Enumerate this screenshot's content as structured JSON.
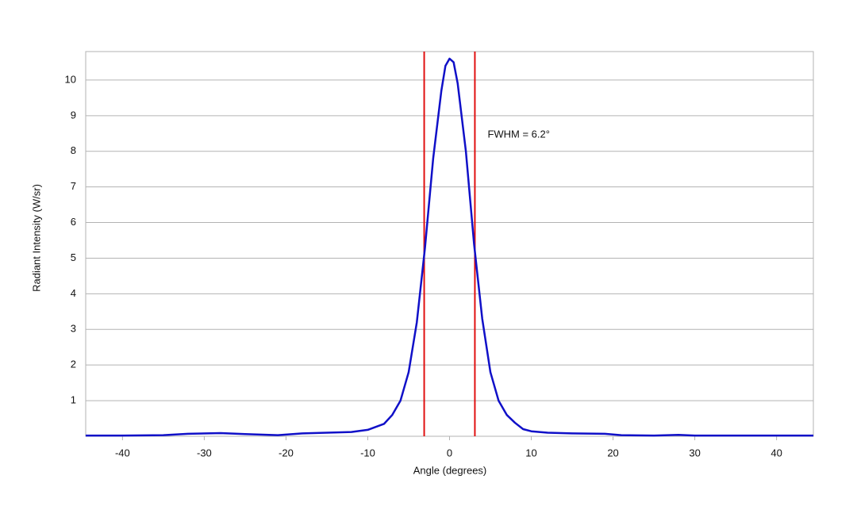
{
  "chart_data": {
    "type": "line",
    "x_label": "Angle (degrees)",
    "y_label": "Radiant Intensity (W/sr)",
    "x": [
      -44.5,
      -40,
      -35,
      -32,
      -28,
      -25,
      -21,
      -18,
      -15,
      -12,
      -10,
      -8,
      -7,
      -6,
      -5,
      -4,
      -3,
      -2,
      -1,
      -0.5,
      0,
      0.5,
      1,
      2,
      3,
      4,
      5,
      6,
      7,
      8,
      9,
      10,
      12,
      15,
      19,
      21,
      25,
      28,
      30,
      35,
      40,
      44.5
    ],
    "series": [
      {
        "color": "#1010c8",
        "values": [
          0.02,
          0.02,
          0.03,
          0.07,
          0.09,
          0.06,
          0.03,
          0.08,
          0.1,
          0.12,
          0.18,
          0.35,
          0.6,
          1.0,
          1.8,
          3.2,
          5.3,
          7.8,
          9.7,
          10.4,
          10.6,
          10.5,
          9.9,
          8.0,
          5.4,
          3.3,
          1.8,
          1.0,
          0.6,
          0.38,
          0.2,
          0.14,
          0.1,
          0.08,
          0.07,
          0.03,
          0.02,
          0.04,
          0.02,
          0.02,
          0.02,
          0.02
        ]
      }
    ],
    "vlines": [
      -3.1,
      3.1
    ],
    "vline_color": "#e01010",
    "annotation": "FWHM = 6.2°",
    "xlim": [
      -44.5,
      44.5
    ],
    "ylim": [
      0,
      10.8
    ],
    "xticks": [
      -40,
      -30,
      -20,
      -10,
      0,
      10,
      20,
      30,
      40
    ],
    "yticks": [
      1,
      2,
      3,
      4,
      5,
      6,
      7,
      8,
      9,
      10
    ],
    "grid": true
  }
}
